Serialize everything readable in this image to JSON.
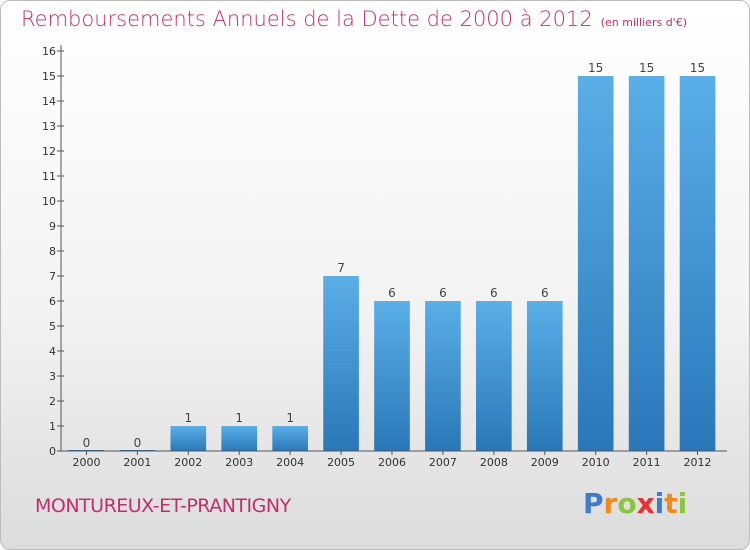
{
  "header": {
    "title": "Remboursements Annuels de la Dette de 2000 à 2012",
    "subtitle": "(en milliers d'€)"
  },
  "footer": {
    "municipality": "MONTUREUX-ET-PRANTIGNY",
    "logo_text": "Proxiti",
    "logo_letters": [
      {
        "char": "P",
        "color": "#3d7cc9"
      },
      {
        "char": "r",
        "color": "#f28a1a"
      },
      {
        "char": "o",
        "color": "#8cc63f"
      },
      {
        "char": "x",
        "color": "#e8312f"
      },
      {
        "char": "i",
        "color": "#3d7cc9"
      },
      {
        "char": "t",
        "color": "#f28a1a"
      },
      {
        "char": "i",
        "color": "#8cc63f"
      }
    ]
  },
  "colors": {
    "accent": "#c12f6b",
    "bar_top": "#5aafe8",
    "bar_bottom": "#2a77b8",
    "axis": "#555555"
  },
  "chart_data": {
    "type": "bar",
    "title": "Remboursements Annuels de la Dette de 2000 à 2012",
    "subtitle": "(en milliers d'€)",
    "categories": [
      "2000",
      "2001",
      "2002",
      "2003",
      "2004",
      "2005",
      "2006",
      "2007",
      "2008",
      "2009",
      "2010",
      "2011",
      "2012"
    ],
    "values": [
      0,
      0,
      1,
      1,
      1,
      7,
      6,
      6,
      6,
      6,
      15,
      15,
      15
    ],
    "data_labels": [
      "0",
      "0",
      "1",
      "1",
      "1",
      "7",
      "6",
      "6",
      "6",
      "6",
      "15",
      "15",
      "15"
    ],
    "ylim": [
      0,
      16
    ],
    "yticks": [
      0,
      1,
      2,
      3,
      4,
      5,
      6,
      7,
      8,
      9,
      10,
      11,
      12,
      13,
      14,
      15,
      16
    ],
    "ytick_labels": [
      "0",
      "1",
      "2",
      "3",
      "4",
      "5",
      "6",
      "7",
      "8",
      "9",
      "10",
      "11",
      "12",
      "13",
      "14",
      "15",
      "16"
    ],
    "xlabel": "",
    "ylabel": "",
    "grid": false,
    "legend": "none"
  }
}
